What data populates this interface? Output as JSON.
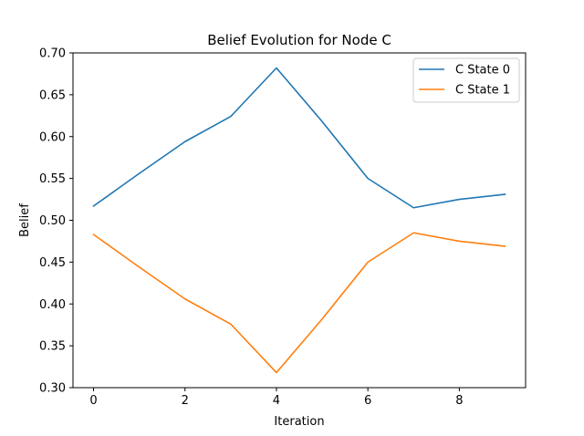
{
  "chart_data": {
    "type": "line",
    "title": "Belief Evolution for Node C",
    "xlabel": "Iteration",
    "ylabel": "Belief",
    "x": [
      0,
      1,
      2,
      3,
      4,
      5,
      6,
      7,
      8,
      9
    ],
    "xlim": [
      -0.45,
      9.45
    ],
    "ylim": [
      0.3,
      0.7
    ],
    "xticks": [
      0,
      2,
      4,
      6,
      8
    ],
    "yticks": [
      0.3,
      0.35,
      0.4,
      0.45,
      0.5,
      0.55,
      0.6,
      0.65,
      0.7
    ],
    "grid": false,
    "legend_position": "top-right",
    "series": [
      {
        "name": "C State 0",
        "color": "#1f77b4",
        "values": [
          0.517,
          0.556,
          0.594,
          0.624,
          0.682,
          0.618,
          0.55,
          0.515,
          0.525,
          0.531
        ]
      },
      {
        "name": "C State 1",
        "color": "#ff7f0e",
        "values": [
          0.483,
          0.444,
          0.406,
          0.376,
          0.318,
          0.382,
          0.45,
          0.485,
          0.475,
          0.469
        ]
      }
    ]
  }
}
